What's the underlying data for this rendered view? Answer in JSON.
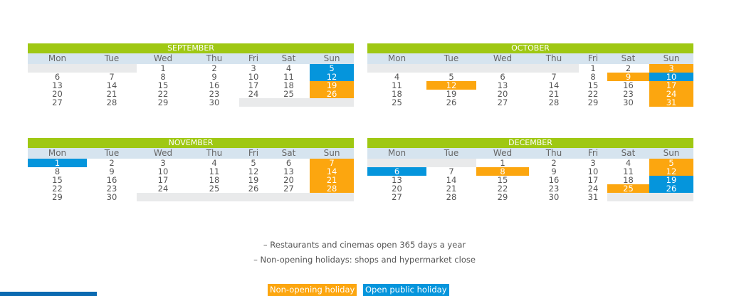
{
  "weekdays": [
    "Mon",
    "Tue",
    "Wed",
    "Thu",
    "Fri",
    "Sat",
    "Sun"
  ],
  "colors": {
    "month_header": "#9fc813",
    "weekday_header": "#d6e4ef",
    "empty_cell": "#e9eaeb",
    "non_opening_holiday": "#fca60f",
    "open_public_holiday": "#0595dc"
  },
  "calendars": [
    {
      "month": "SEPTEMBER",
      "weeks": [
        [
          null,
          null,
          "1",
          "2",
          "3",
          "4",
          "5"
        ],
        [
          "6",
          "7",
          "8",
          "9",
          "10",
          "11",
          "12"
        ],
        [
          "13",
          "14",
          "15",
          "16",
          "17",
          "18",
          "19"
        ],
        [
          "20",
          "21",
          "22",
          "23",
          "24",
          "25",
          "26"
        ],
        [
          "27",
          "28",
          "29",
          "30",
          null,
          null,
          null
        ]
      ],
      "orange_days": [
        "19",
        "26"
      ],
      "blue_days": [
        "5",
        "12"
      ]
    },
    {
      "month": "OCTOBER",
      "weeks": [
        [
          null,
          null,
          null,
          null,
          "1",
          "2",
          "3"
        ],
        [
          "4",
          "5",
          "6",
          "7",
          "8",
          "9",
          "10"
        ],
        [
          "11",
          "12",
          "13",
          "14",
          "15",
          "16",
          "17"
        ],
        [
          "18",
          "19",
          "20",
          "21",
          "22",
          "23",
          "24"
        ],
        [
          "25",
          "26",
          "27",
          "28",
          "29",
          "30",
          "31"
        ]
      ],
      "orange_days": [
        "3",
        "9",
        "12",
        "17",
        "24",
        "31"
      ],
      "blue_days": [
        "10"
      ]
    },
    {
      "month": "NOVEMBER",
      "weeks": [
        [
          "1",
          "2",
          "3",
          "4",
          "5",
          "6",
          "7"
        ],
        [
          "8",
          "9",
          "10",
          "11",
          "12",
          "13",
          "14"
        ],
        [
          "15",
          "16",
          "17",
          "18",
          "19",
          "20",
          "21"
        ],
        [
          "22",
          "23",
          "24",
          "25",
          "26",
          "27",
          "28"
        ],
        [
          "29",
          "30",
          null,
          null,
          null,
          null,
          null
        ]
      ],
      "orange_days": [
        "7",
        "14",
        "21",
        "28"
      ],
      "blue_days": [
        "1"
      ]
    },
    {
      "month": "DECEMBER",
      "weeks": [
        [
          null,
          null,
          "1",
          "2",
          "3",
          "4",
          "5"
        ],
        [
          "6",
          "7",
          "8",
          "9",
          "10",
          "11",
          "12"
        ],
        [
          "13",
          "14",
          "15",
          "16",
          "17",
          "18",
          "19"
        ],
        [
          "20",
          "21",
          "22",
          "23",
          "24",
          "25",
          "26"
        ],
        [
          "27",
          "28",
          "29",
          "30",
          "31",
          null,
          null
        ]
      ],
      "orange_days": [
        "5",
        "8",
        "12",
        "25"
      ],
      "blue_days": [
        "6",
        "19",
        "26"
      ]
    }
  ],
  "notes": {
    "line1": "– Restaurants and cinemas open 365 days a year",
    "line2": "– Non-opening holidays: shops and hypermarket close"
  },
  "legend": {
    "non_opening": "Non-opening holiday",
    "open_public": "Open public holiday"
  }
}
